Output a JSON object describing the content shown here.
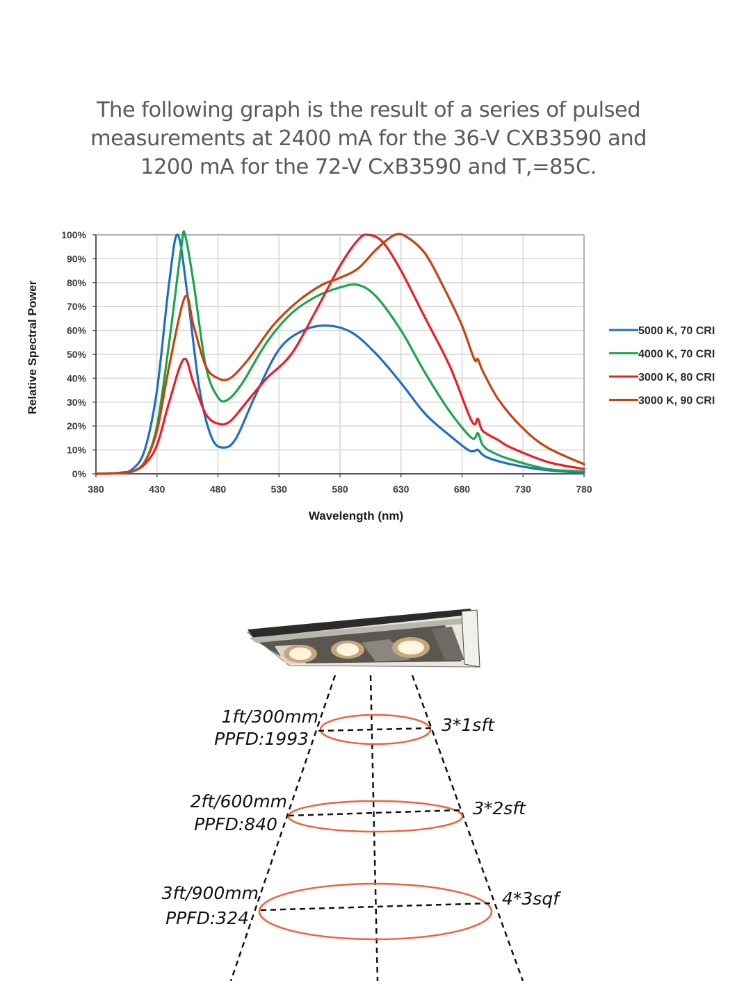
{
  "caption": {
    "lines": [
      "The following graph is the result of a series of pulsed",
      "measurements at 2400 mA for the 36-V CXB3590 and",
      "1200 mA for the 72-V CxB3590 and T,=85C."
    ]
  },
  "chart_data": {
    "type": "line",
    "title": "",
    "xlabel": "Wavelength (nm)",
    "ylabel": "Relative Spectral Power",
    "xlim": [
      380,
      780
    ],
    "ylim": [
      0,
      100
    ],
    "x_ticks": [
      "380",
      "430",
      "480",
      "530",
      "580",
      "630",
      "680",
      "730",
      "780"
    ],
    "y_ticks": [
      "0%",
      "10%",
      "20%",
      "30%",
      "40%",
      "50%",
      "60%",
      "70%",
      "80%",
      "90%",
      "100%"
    ],
    "grid": true,
    "legend_position": "right",
    "series": [
      {
        "name": "5000 K, 70 CRI",
        "color": "#1f6fc1",
        "points": [
          [
            380,
            0
          ],
          [
            400,
            0.5
          ],
          [
            410,
            2
          ],
          [
            420,
            10
          ],
          [
            430,
            35
          ],
          [
            440,
            80
          ],
          [
            447,
            100
          ],
          [
            455,
            75
          ],
          [
            465,
            35
          ],
          [
            475,
            15
          ],
          [
            485,
            11
          ],
          [
            495,
            15
          ],
          [
            510,
            32
          ],
          [
            530,
            52
          ],
          [
            550,
            60
          ],
          [
            570,
            62
          ],
          [
            590,
            59
          ],
          [
            610,
            50
          ],
          [
            630,
            38
          ],
          [
            650,
            25
          ],
          [
            670,
            16
          ],
          [
            685,
            10
          ],
          [
            690,
            9.5
          ],
          [
            693,
            10
          ],
          [
            700,
            7
          ],
          [
            720,
            4
          ],
          [
            750,
            1.5
          ],
          [
            780,
            0.5
          ]
        ]
      },
      {
        "name": "4000 K, 70 CRI",
        "color": "#1aa64a",
        "points": [
          [
            380,
            0
          ],
          [
            400,
            0.3
          ],
          [
            410,
            1
          ],
          [
            420,
            5
          ],
          [
            430,
            20
          ],
          [
            440,
            55
          ],
          [
            450,
            95
          ],
          [
            453,
            100
          ],
          [
            460,
            80
          ],
          [
            470,
            45
          ],
          [
            480,
            32
          ],
          [
            488,
            31
          ],
          [
            500,
            38
          ],
          [
            520,
            55
          ],
          [
            540,
            67
          ],
          [
            560,
            74
          ],
          [
            580,
            78
          ],
          [
            595,
            79
          ],
          [
            610,
            74
          ],
          [
            630,
            60
          ],
          [
            650,
            42
          ],
          [
            670,
            26
          ],
          [
            688,
            15
          ],
          [
            693,
            17
          ],
          [
            697,
            12
          ],
          [
            705,
            9
          ],
          [
            720,
            6
          ],
          [
            750,
            2
          ],
          [
            780,
            1
          ]
        ]
      },
      {
        "name": "3000 K, 80 CRI",
        "color": "#ee1c24",
        "points": [
          [
            380,
            0
          ],
          [
            400,
            0.3
          ],
          [
            410,
            1
          ],
          [
            420,
            4
          ],
          [
            430,
            12
          ],
          [
            440,
            30
          ],
          [
            452,
            48
          ],
          [
            460,
            38
          ],
          [
            470,
            25
          ],
          [
            480,
            21
          ],
          [
            490,
            22
          ],
          [
            505,
            31
          ],
          [
            520,
            40
          ],
          [
            540,
            50
          ],
          [
            560,
            68
          ],
          [
            580,
            87
          ],
          [
            595,
            98
          ],
          [
            603,
            100
          ],
          [
            615,
            97
          ],
          [
            630,
            85
          ],
          [
            650,
            65
          ],
          [
            670,
            45
          ],
          [
            688,
            22
          ],
          [
            693,
            23
          ],
          [
            697,
            18
          ],
          [
            710,
            14
          ],
          [
            720,
            11
          ],
          [
            750,
            5
          ],
          [
            780,
            2
          ]
        ]
      },
      {
        "name": "3000 K, 90 CRI",
        "color": "#c8420f",
        "points": [
          [
            380,
            0
          ],
          [
            400,
            0.3
          ],
          [
            410,
            1
          ],
          [
            420,
            5
          ],
          [
            430,
            18
          ],
          [
            440,
            45
          ],
          [
            453,
            74
          ],
          [
            460,
            62
          ],
          [
            470,
            45
          ],
          [
            480,
            40
          ],
          [
            490,
            40
          ],
          [
            505,
            48
          ],
          [
            525,
            62
          ],
          [
            545,
            72
          ],
          [
            565,
            79
          ],
          [
            580,
            82
          ],
          [
            595,
            86
          ],
          [
            610,
            94
          ],
          [
            625,
            100
          ],
          [
            635,
            99
          ],
          [
            650,
            92
          ],
          [
            665,
            78
          ],
          [
            680,
            62
          ],
          [
            690,
            48
          ],
          [
            693,
            48
          ],
          [
            697,
            43
          ],
          [
            710,
            31
          ],
          [
            730,
            19
          ],
          [
            750,
            11
          ],
          [
            780,
            4
          ]
        ]
      }
    ]
  },
  "diagram": {
    "lamp_label": "LED grow light fixture",
    "levels": [
      {
        "height": "1ft/300mm",
        "ppfd": "PPFD:1993",
        "coverage": "3*1sft"
      },
      {
        "height": "2ft/600mm",
        "ppfd": "PPFD:840",
        "coverage": "3*2sft"
      },
      {
        "height": "3ft/900mm",
        "ppfd": "PPFD:324",
        "coverage": "4*3sqf"
      }
    ],
    "ellipse_color": "#f0603a"
  }
}
